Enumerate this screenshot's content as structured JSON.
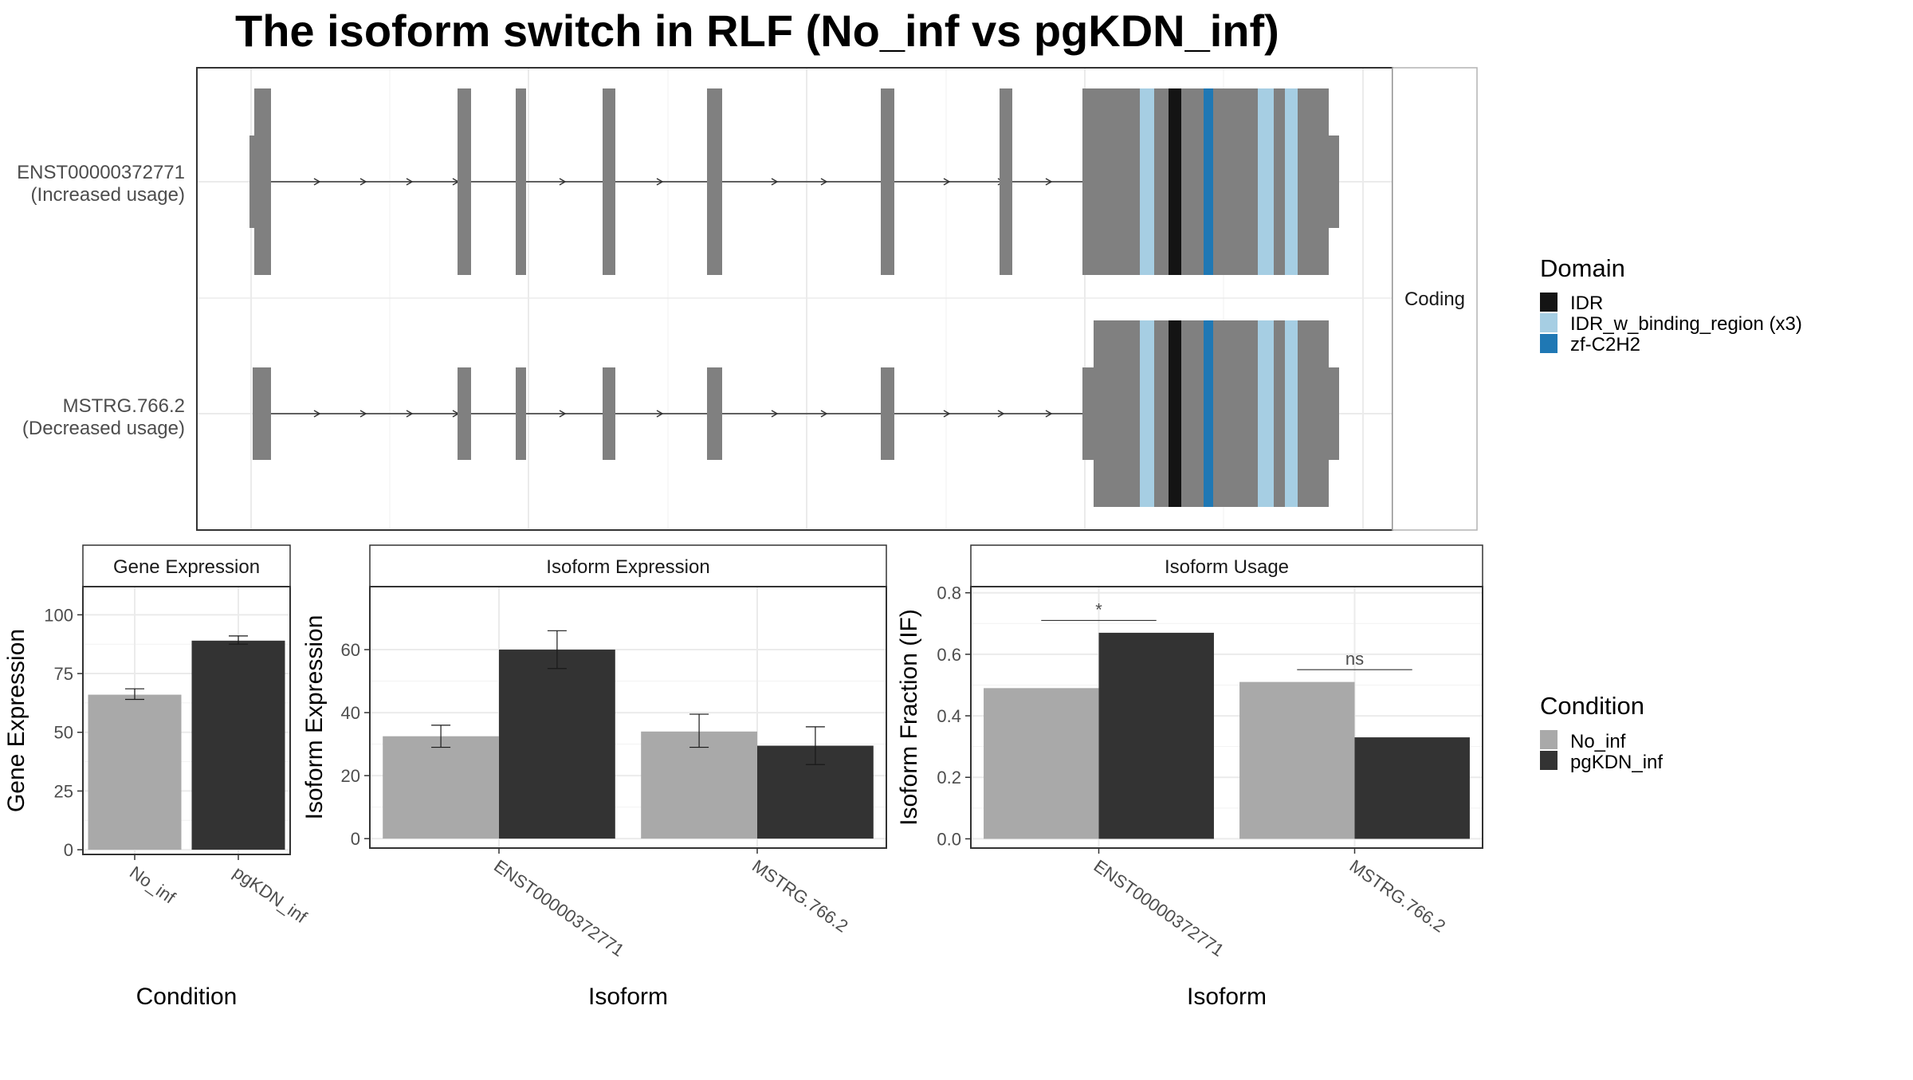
{
  "title": "The isoform switch in RLF (No_inf vs pgKDN_inf)",
  "colors": {
    "exon": "#808080",
    "IDR": "#141414",
    "IDR_w_binding_region": "#a6cee3",
    "zf-C2H2": "#1f78b4",
    "No_inf": "#a9a9a9",
    "pgKDN_inf": "#333333"
  },
  "transcript_plot": {
    "facet_label": "Coding",
    "transcripts": [
      {
        "id": "ENST00000372771",
        "usage": "(Increased usage)"
      },
      {
        "id": "MSTRG.766.2",
        "usage": "(Decreased usage)"
      }
    ]
  },
  "legend_domain": {
    "title": "Domain",
    "items": [
      {
        "label": "IDR",
        "color": "#141414"
      },
      {
        "label": "IDR_w_binding_region (x3)",
        "color": "#a6cee3"
      },
      {
        "label": "zf-C2H2",
        "color": "#1f78b4"
      }
    ]
  },
  "legend_condition": {
    "title": "Condition",
    "items": [
      {
        "label": "No_inf",
        "color": "#a9a9a9"
      },
      {
        "label": "pgKDN_inf",
        "color": "#333333"
      }
    ]
  },
  "chart_data": [
    {
      "type": "bar",
      "strip": "Gene Expression",
      "title": "",
      "xlabel": "Condition",
      "ylabel": "Gene Expression",
      "categories": [
        "No_inf",
        "pgKDN_inf"
      ],
      "values": [
        66,
        89
      ],
      "errors": [
        [
          64,
          68.5
        ],
        [
          87.5,
          91
        ]
      ],
      "ylim": [
        -2,
        112
      ],
      "yticks": [
        0,
        25,
        50,
        75,
        100
      ],
      "grid": true
    },
    {
      "type": "bar",
      "strip": "Isoform Expression",
      "title": "",
      "xlabel": "Isoform",
      "ylabel": "Isoform Expression",
      "categories": [
        "ENST00000372771",
        "MSTRG.766.2"
      ],
      "series": [
        {
          "name": "No_inf",
          "values": [
            32.5,
            34
          ],
          "errors": [
            [
              29,
              36
            ],
            [
              29,
              39.5
            ]
          ]
        },
        {
          "name": "pgKDN_inf",
          "values": [
            60,
            29.5
          ],
          "errors": [
            [
              54,
              66
            ],
            [
              23.5,
              35.5
            ]
          ]
        }
      ],
      "ylim": [
        -3,
        80
      ],
      "yticks": [
        0,
        20,
        40,
        60
      ],
      "grid": true
    },
    {
      "type": "bar",
      "strip": "Isoform Usage",
      "title": "",
      "xlabel": "Isoform",
      "ylabel": "Isoform Fraction (IF)",
      "categories": [
        "ENST00000372771",
        "MSTRG.766.2"
      ],
      "series": [
        {
          "name": "No_inf",
          "values": [
            0.49,
            0.51
          ]
        },
        {
          "name": "pgKDN_inf",
          "values": [
            0.67,
            0.33
          ]
        }
      ],
      "significance": [
        "*",
        "ns"
      ],
      "sig_level": [
        0.71,
        0.55
      ],
      "ylim": [
        -0.03,
        0.82
      ],
      "yticks": [
        0.0,
        0.2,
        0.4,
        0.6,
        0.8
      ],
      "ytick_labels": [
        "0.0",
        "0.2",
        "0.4",
        "0.6",
        "0.8"
      ],
      "grid": true
    }
  ]
}
